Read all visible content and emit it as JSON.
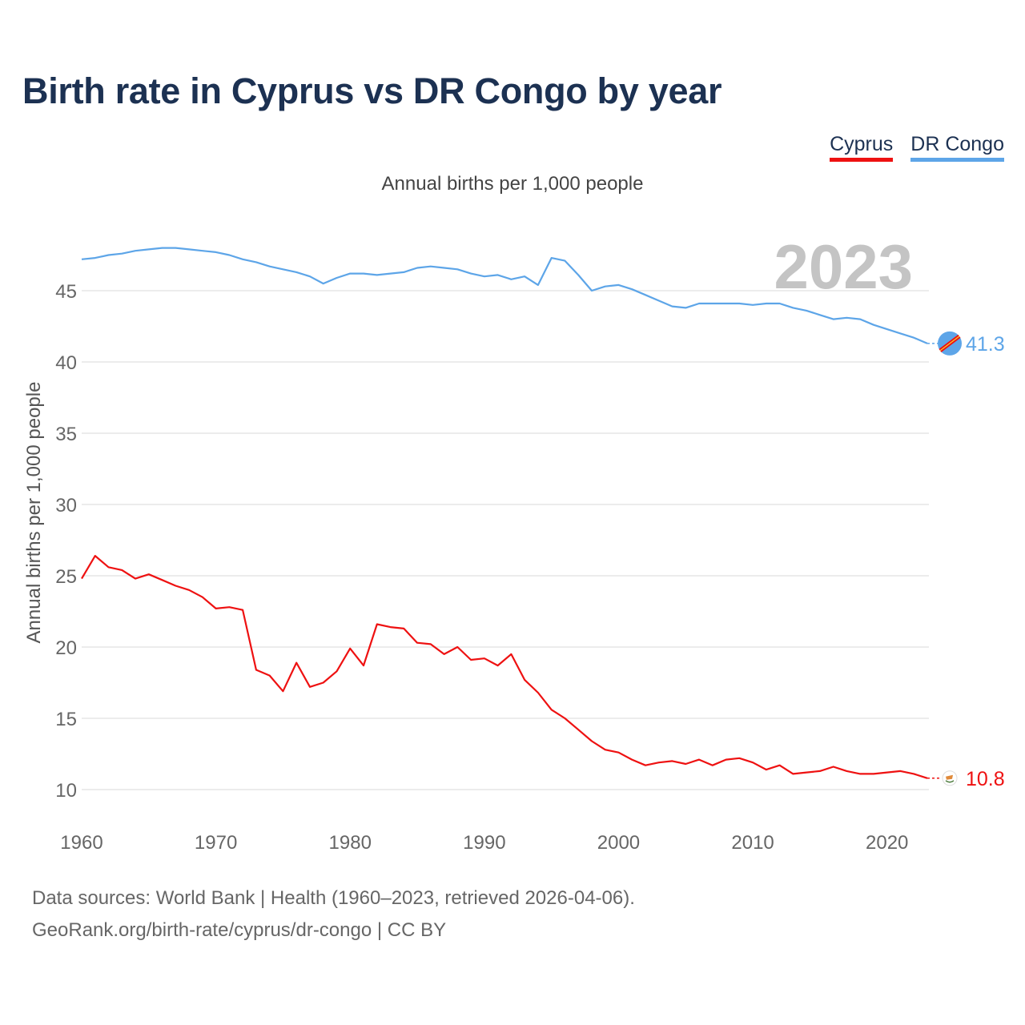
{
  "header": {
    "title": "Birth rate in Cyprus vs DR Congo by year",
    "subtitle": "Annual births per 1,000 people"
  },
  "legend": {
    "items": [
      {
        "label": "Cyprus",
        "color": "#ee1111"
      },
      {
        "label": "DR Congo",
        "color": "#5da5e8"
      }
    ]
  },
  "chart_data": {
    "type": "line",
    "title": "Birth rate in Cyprus vs DR Congo by year",
    "xlabel": "",
    "ylabel": "Annual births per 1,000 people",
    "year_label": "2023",
    "xlim": [
      1960,
      2023
    ],
    "ylim": [
      10,
      47
    ],
    "yticks": [
      10,
      15,
      20,
      25,
      30,
      35,
      40,
      45
    ],
    "xticks": [
      1960,
      1970,
      1980,
      1990,
      2000,
      2010,
      2020
    ],
    "grid": true,
    "x": [
      1960,
      1961,
      1962,
      1963,
      1964,
      1965,
      1966,
      1967,
      1968,
      1969,
      1970,
      1971,
      1972,
      1973,
      1974,
      1975,
      1976,
      1977,
      1978,
      1979,
      1980,
      1981,
      1982,
      1983,
      1984,
      1985,
      1986,
      1987,
      1988,
      1989,
      1990,
      1991,
      1992,
      1993,
      1994,
      1995,
      1996,
      1997,
      1998,
      1999,
      2000,
      2001,
      2002,
      2003,
      2004,
      2005,
      2006,
      2007,
      2008,
      2009,
      2010,
      2011,
      2012,
      2013,
      2014,
      2015,
      2016,
      2017,
      2018,
      2019,
      2020,
      2021,
      2022,
      2023
    ],
    "series": [
      {
        "name": "Cyprus",
        "color": "#ee1111",
        "end_label": "10.8",
        "values": [
          24.8,
          26.4,
          25.6,
          25.4,
          24.8,
          25.1,
          24.7,
          24.3,
          24.0,
          23.5,
          22.7,
          22.8,
          22.6,
          18.4,
          18.0,
          16.9,
          18.9,
          17.2,
          17.5,
          18.3,
          19.9,
          18.7,
          21.6,
          21.4,
          21.3,
          20.3,
          20.2,
          19.5,
          20.0,
          19.1,
          19.2,
          18.7,
          19.5,
          17.7,
          16.8,
          15.6,
          15.0,
          14.2,
          13.4,
          12.8,
          12.6,
          12.1,
          11.7,
          11.9,
          12.0,
          11.8,
          12.1,
          11.7,
          12.1,
          12.2,
          11.9,
          11.4,
          11.7,
          11.1,
          11.2,
          11.3,
          11.6,
          11.3,
          11.1,
          11.1,
          11.2,
          11.3,
          11.1,
          10.8
        ]
      },
      {
        "name": "DR Congo",
        "color": "#5da5e8",
        "end_label": "41.3",
        "values": [
          47.2,
          47.3,
          47.5,
          47.6,
          47.8,
          47.9,
          48.0,
          48.0,
          47.9,
          47.8,
          47.7,
          47.5,
          47.2,
          47.0,
          46.7,
          46.5,
          46.3,
          46.0,
          45.5,
          45.9,
          46.2,
          46.2,
          46.1,
          46.2,
          46.3,
          46.6,
          46.7,
          46.6,
          46.5,
          46.2,
          46.0,
          46.1,
          45.8,
          46.0,
          45.4,
          47.3,
          47.1,
          46.1,
          45.0,
          45.3,
          45.4,
          45.1,
          44.7,
          44.3,
          43.9,
          43.8,
          44.1,
          44.1,
          44.1,
          44.1,
          44.0,
          44.1,
          44.1,
          43.8,
          43.6,
          43.3,
          43.0,
          43.1,
          43.0,
          42.6,
          42.3,
          42.0,
          41.7,
          41.3
        ]
      }
    ]
  },
  "footer": {
    "source_line_1": "Data sources: World Bank | Health (1960–2023, retrieved 2026-04-06).",
    "source_line_2": "GeoRank.org/birth-rate/cyprus/dr-congo | CC BY"
  }
}
